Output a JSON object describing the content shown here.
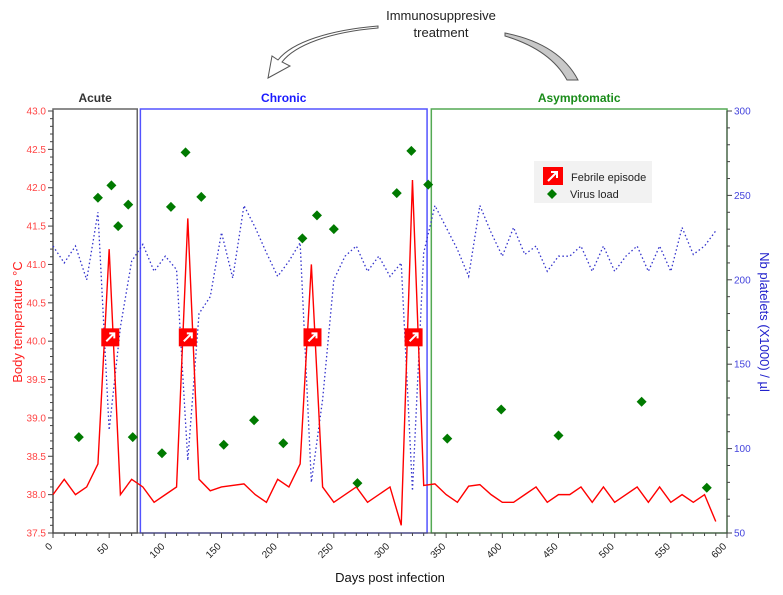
{
  "chart_data": {
    "type": "line",
    "annotation": {
      "line1": "Immunosuppresive",
      "line2": "treatment"
    },
    "phases": [
      {
        "label": "Acute",
        "start": 0,
        "end": 75,
        "color": "#333333"
      },
      {
        "label": "Chronic",
        "start": 76,
        "end": 333,
        "color": "#1a1aff"
      },
      {
        "label": "Asymptomatic",
        "start": 335,
        "end": 600,
        "color": "#1a8c1a"
      }
    ],
    "xlabel": "Days post infection",
    "ylabel_left": "Body temperature °C",
    "ylabel_right": "Nb platelets (X1000) / µl",
    "xlim": [
      0,
      600
    ],
    "ylim_left": [
      37.5,
      43.0
    ],
    "ylim_right": [
      50,
      300
    ],
    "xticks": [
      "0",
      "50",
      "100",
      "150",
      "200",
      "250",
      "300",
      "350",
      "400",
      "450",
      "500",
      "550",
      "600"
    ],
    "yticks_left": [
      "37.5",
      "38.0",
      "38.5",
      "39.0",
      "39.5",
      "40.0",
      "40.5",
      "41.0",
      "41.5",
      "42.0",
      "42.5",
      "43.0"
    ],
    "yticks_right": [
      "50",
      "100",
      "150",
      "200",
      "250",
      "300"
    ],
    "legend": {
      "position": "top-right",
      "items": [
        "Febrile episode",
        "Virus load"
      ]
    },
    "colors": {
      "temperature": "#ff0000",
      "platelets": "#3333cc",
      "virus": "#007a00",
      "febrile": "#ff0000"
    },
    "temperature": {
      "x": [
        0,
        10,
        20,
        30,
        40,
        50,
        60,
        70,
        80,
        90,
        100,
        110,
        120,
        130,
        140,
        150,
        170,
        180,
        190,
        200,
        210,
        220,
        230,
        240,
        250,
        270,
        280,
        300,
        310,
        320,
        330,
        340,
        350,
        360,
        370,
        380,
        390,
        400,
        410,
        420,
        430,
        440,
        450,
        460,
        470,
        480,
        490,
        500,
        520,
        530,
        540,
        550,
        560,
        570,
        580,
        590
      ],
      "y": [
        38.0,
        38.2,
        38.0,
        38.1,
        38.4,
        41.2,
        38.0,
        38.2,
        38.1,
        37.9,
        38.0,
        38.1,
        41.6,
        38.2,
        38.05,
        38.1,
        38.14,
        38.0,
        37.9,
        38.2,
        38.1,
        38.4,
        41.0,
        38.1,
        37.9,
        38.1,
        37.9,
        38.1,
        37.6,
        42.1,
        38.12,
        38.14,
        38.0,
        37.9,
        38.11,
        38.13,
        38.0,
        37.9,
        37.9,
        38.0,
        38.1,
        37.9,
        38.0,
        38.0,
        38.1,
        37.9,
        38.1,
        37.9,
        38.1,
        37.9,
        38.1,
        37.9,
        38.0,
        37.9,
        38.0,
        37.65
      ]
    },
    "platelets": {
      "x": [
        0,
        10,
        20,
        30,
        40,
        50,
        60,
        70,
        80,
        90,
        100,
        110,
        120,
        130,
        140,
        150,
        160,
        170,
        180,
        190,
        200,
        210,
        220,
        230,
        240,
        250,
        260,
        270,
        280,
        290,
        300,
        310,
        320,
        330,
        340,
        350,
        360,
        370,
        380,
        390,
        400,
        410,
        420,
        430,
        440,
        450,
        460,
        470,
        480,
        490,
        500,
        510,
        520,
        530,
        540,
        550,
        560,
        570,
        580,
        590
      ],
      "y": [
        220,
        210,
        220,
        200,
        240,
        111,
        172,
        211,
        221,
        205,
        214,
        206,
        93,
        180,
        190,
        228,
        201,
        244,
        231,
        216,
        202,
        211,
        222,
        80,
        129,
        200,
        214,
        220,
        205,
        214,
        202,
        210,
        75,
        216,
        244,
        231,
        218,
        202,
        244,
        228,
        214,
        231,
        215,
        220,
        205,
        214,
        214,
        220,
        205,
        220,
        205,
        214,
        220,
        205,
        220,
        205,
        231,
        215,
        220,
        229
      ]
    },
    "virus_load": {
      "x": [
        23,
        40,
        52,
        58,
        67,
        71,
        97,
        105,
        118,
        132,
        152,
        179,
        205,
        222,
        235,
        250,
        271,
        306,
        319,
        334,
        351,
        399,
        450,
        524,
        582
      ],
      "y": [
        38.75,
        41.87,
        42.03,
        41.5,
        41.78,
        38.75,
        38.54,
        41.75,
        42.46,
        41.88,
        38.65,
        38.97,
        38.67,
        41.34,
        41.64,
        41.46,
        38.15,
        41.93,
        42.48,
        42.04,
        38.73,
        39.11,
        38.77,
        39.21,
        38.09
      ]
    },
    "febrile_episodes": {
      "x": [
        51,
        120,
        231,
        321
      ],
      "y": [
        40.05,
        40.05,
        40.05,
        40.05
      ]
    }
  }
}
